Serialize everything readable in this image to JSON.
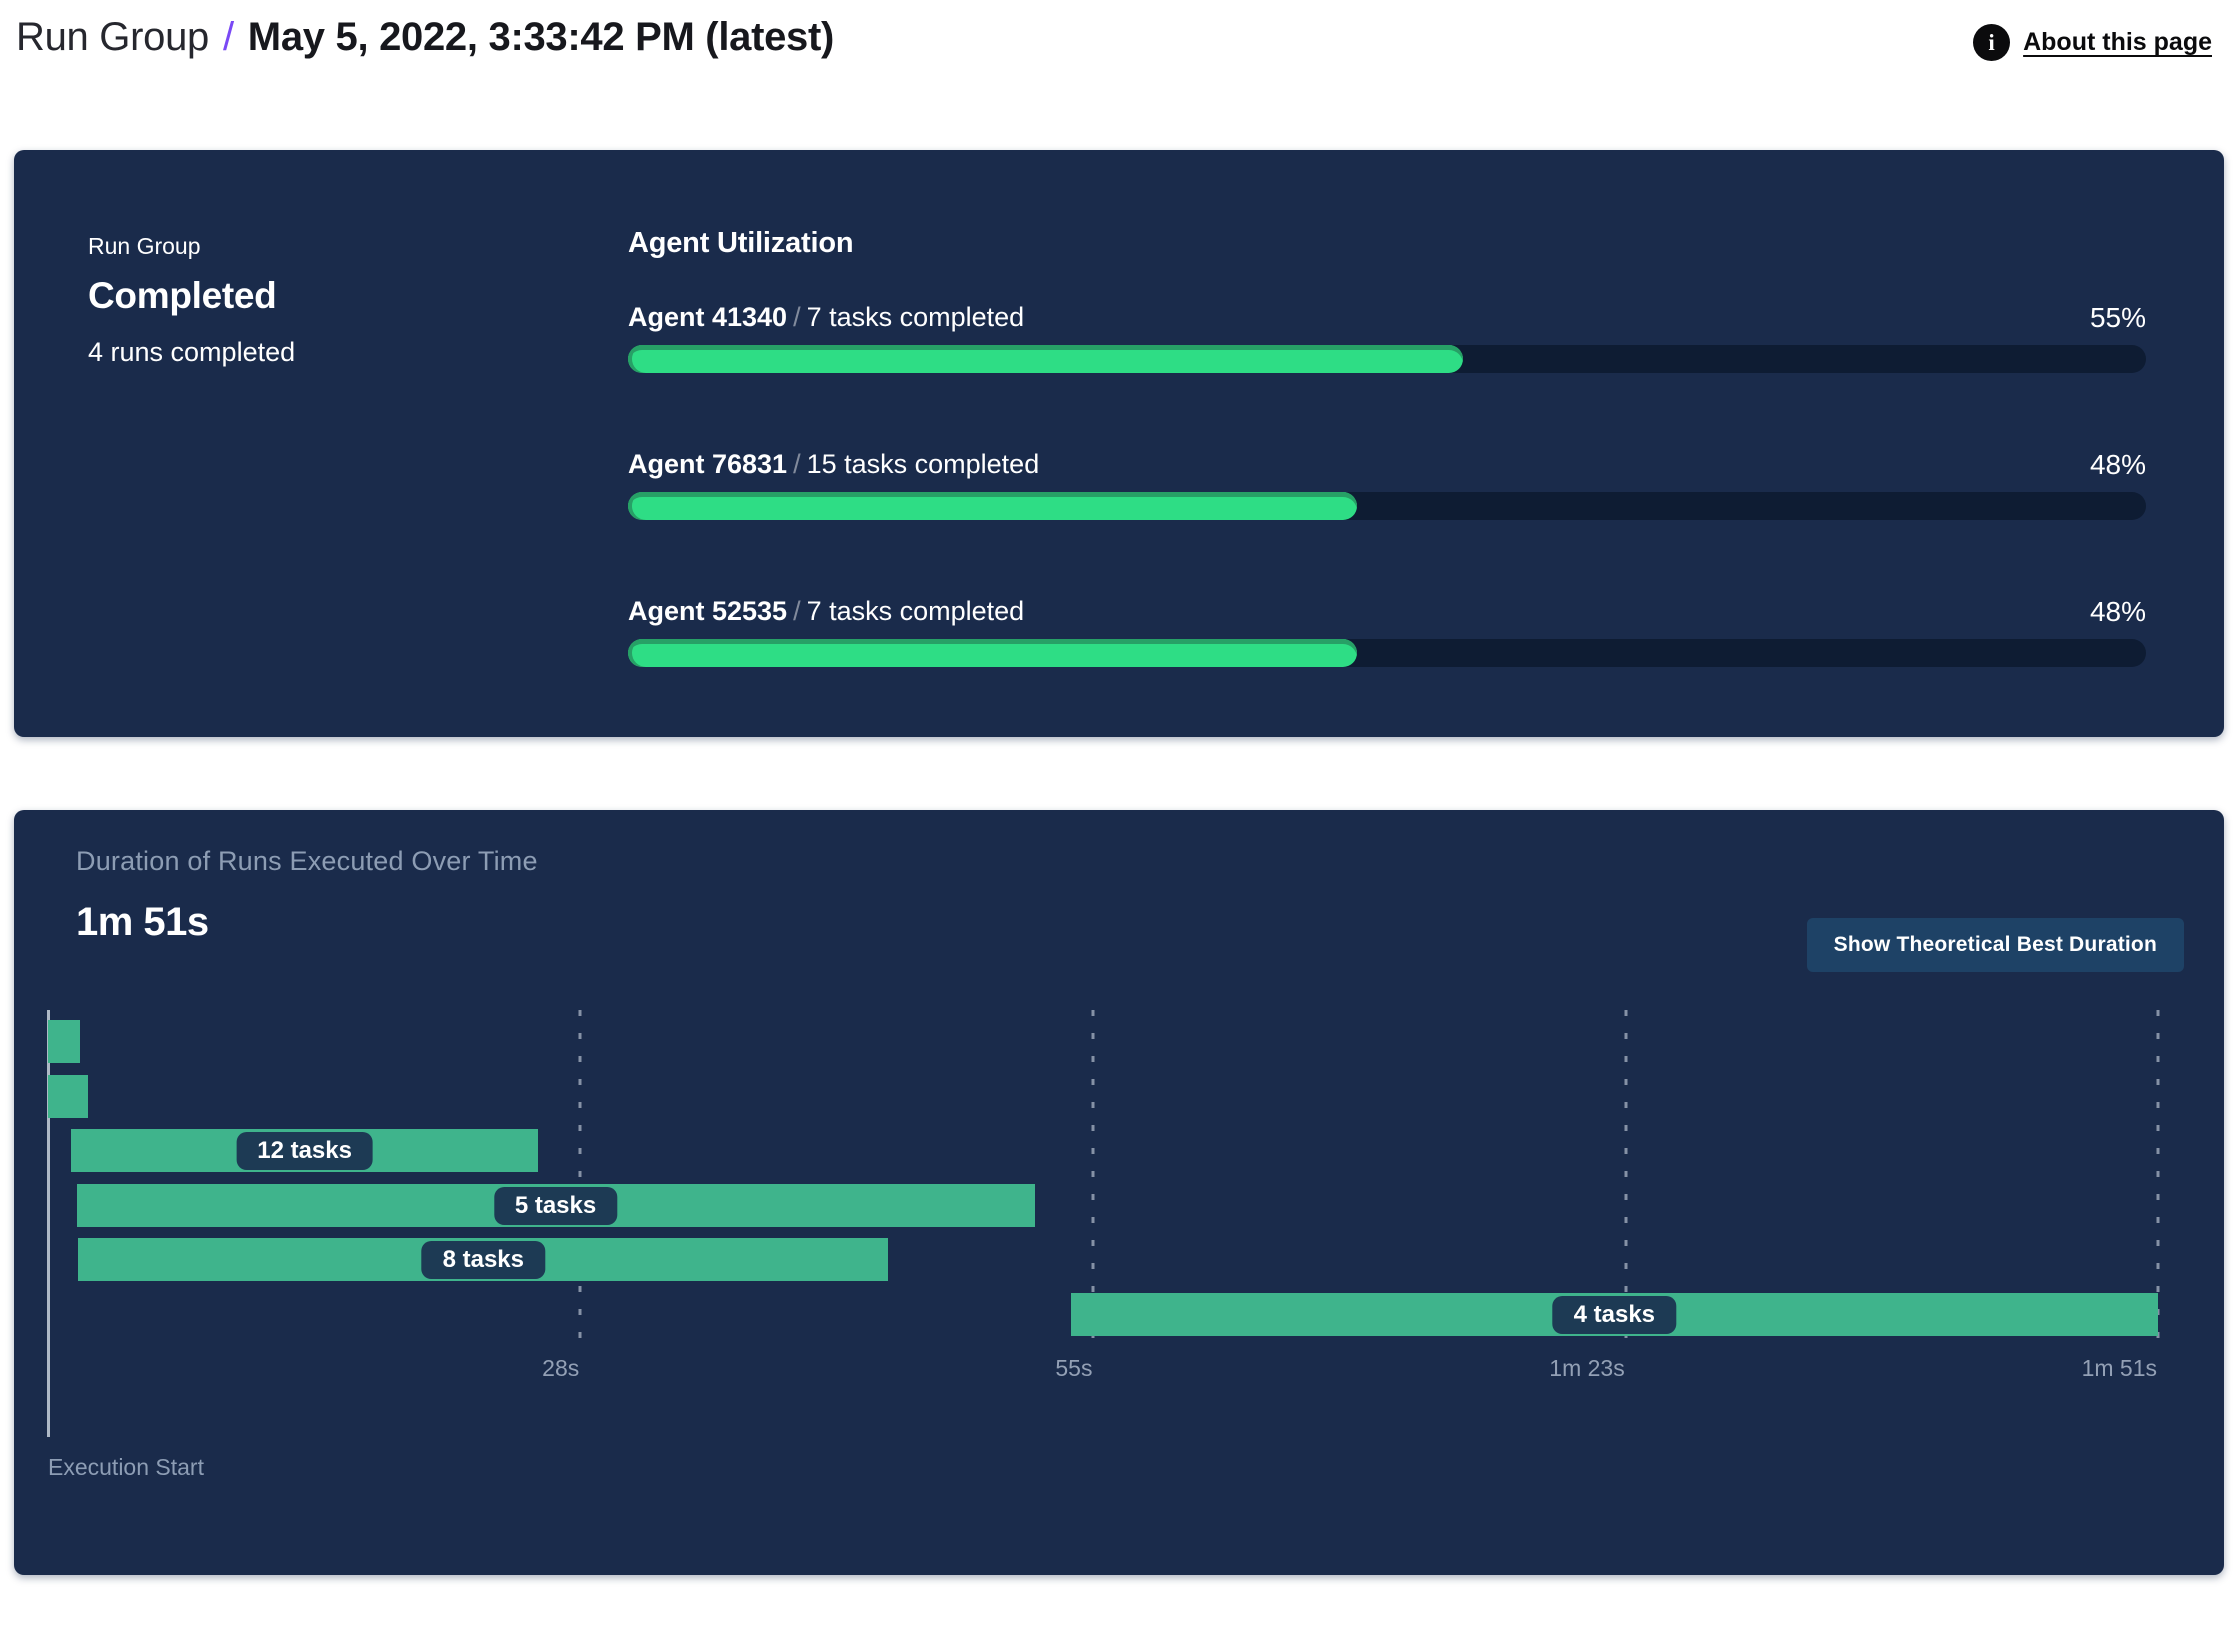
{
  "colors": {
    "panel_bg": "#1a2b4b",
    "track_bg": "#0e1c33",
    "green_fill": "#2edd85",
    "green_rim": "#27a066",
    "gantt_green": "#3fb48c",
    "pill_bg": "#1d3a54",
    "button_bg": "#1e4266",
    "accent_purple": "#7a49f5",
    "muted_text": "#8d9db4",
    "axis_text": "#93a0b5",
    "grid_dash": "#cdd6e2",
    "axis_line": "#aeb9c6",
    "header_text": "#17181d"
  },
  "header": {
    "breadcrumb_root": "Run Group",
    "separator": "/",
    "title": "May 5, 2022, 3:33:42 PM (latest)",
    "about_label": "About this page",
    "info_icon_glyph": "i"
  },
  "summary_panel": {
    "group_label": "Run Group",
    "status": "Completed",
    "runs_completed": "4 runs completed",
    "utilization": {
      "heading": "Agent Utilization",
      "agents": [
        {
          "name": "Agent 41340",
          "tasks": "7 tasks completed",
          "percent": 55
        },
        {
          "name": "Agent 76831",
          "tasks": "15 tasks completed",
          "percent": 48
        },
        {
          "name": "Agent 52535",
          "tasks": "7 tasks completed",
          "percent": 48
        }
      ]
    }
  },
  "duration_panel": {
    "title": "Duration of Runs Executed Over Time",
    "total_duration": "1m 51s",
    "button_label": "Show Theoretical Best Duration",
    "axis_label": "Execution Start"
  },
  "chart_data": [
    {
      "type": "bar",
      "subtype": "gantt",
      "title": "Duration of Runs Executed Over Time",
      "total_duration_label": "1m 51s",
      "x_unit": "seconds",
      "xlim": [
        0,
        111
      ],
      "grid": true,
      "ticks": [
        {
          "seconds": 28,
          "label": "28s"
        },
        {
          "seconds": 55,
          "label": "55s"
        },
        {
          "seconds": 83,
          "label": "1m 23s"
        },
        {
          "seconds": 111,
          "label": "1m 51s"
        }
      ],
      "origin_label": "Execution Start",
      "rows": [
        {
          "start_s": 0,
          "end_s": 1.7,
          "label": ""
        },
        {
          "start_s": 0,
          "end_s": 2.1,
          "label": ""
        },
        {
          "start_s": 1.2,
          "end_s": 25.8,
          "label": "12 tasks"
        },
        {
          "start_s": 1.5,
          "end_s": 51.9,
          "label": "5 tasks"
        },
        {
          "start_s": 1.6,
          "end_s": 44.2,
          "label": "8 tasks"
        },
        {
          "start_s": 53.8,
          "end_s": 111,
          "label": "4 tasks"
        }
      ]
    },
    {
      "type": "bar",
      "title": "Agent Utilization",
      "categories": [
        "Agent 41340",
        "Agent 76831",
        "Agent 52535"
      ],
      "values": [
        55,
        48,
        48
      ],
      "value_unit": "%",
      "xlim": [
        0,
        100
      ],
      "annotations": [
        "7 tasks completed",
        "15 tasks completed",
        "7 tasks completed"
      ]
    }
  ]
}
